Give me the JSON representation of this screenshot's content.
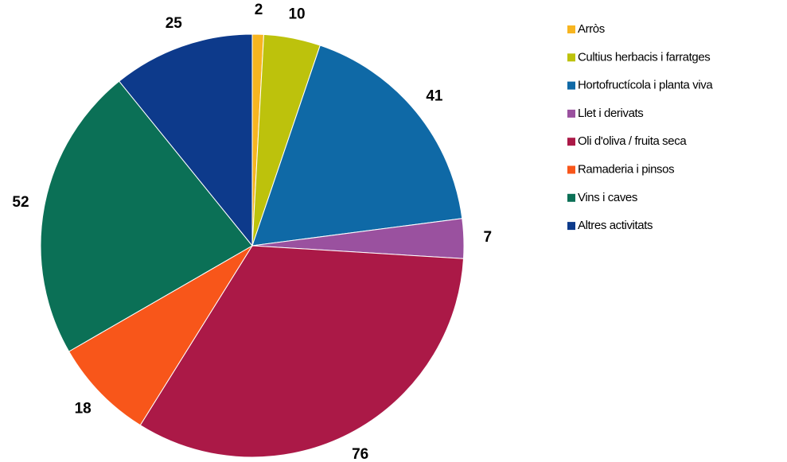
{
  "chart_data": {
    "type": "pie",
    "categories": [
      "Arròs",
      "Cultius herbacis i farratges",
      "Hortofructícola i planta viva",
      "Llet i derivats",
      "Oli d'oliva / fruita seca",
      "Ramaderia i pinsos",
      "Vins i caves",
      "Altres activitats"
    ],
    "values": [
      2,
      10,
      41,
      7,
      76,
      18,
      52,
      25
    ],
    "colors": [
      "#f7b520",
      "#bdc20c",
      "#0f69a6",
      "#9a519f",
      "#ab1947",
      "#f8561a",
      "#0b7056",
      "#0d3a8b"
    ],
    "legend": "right"
  }
}
